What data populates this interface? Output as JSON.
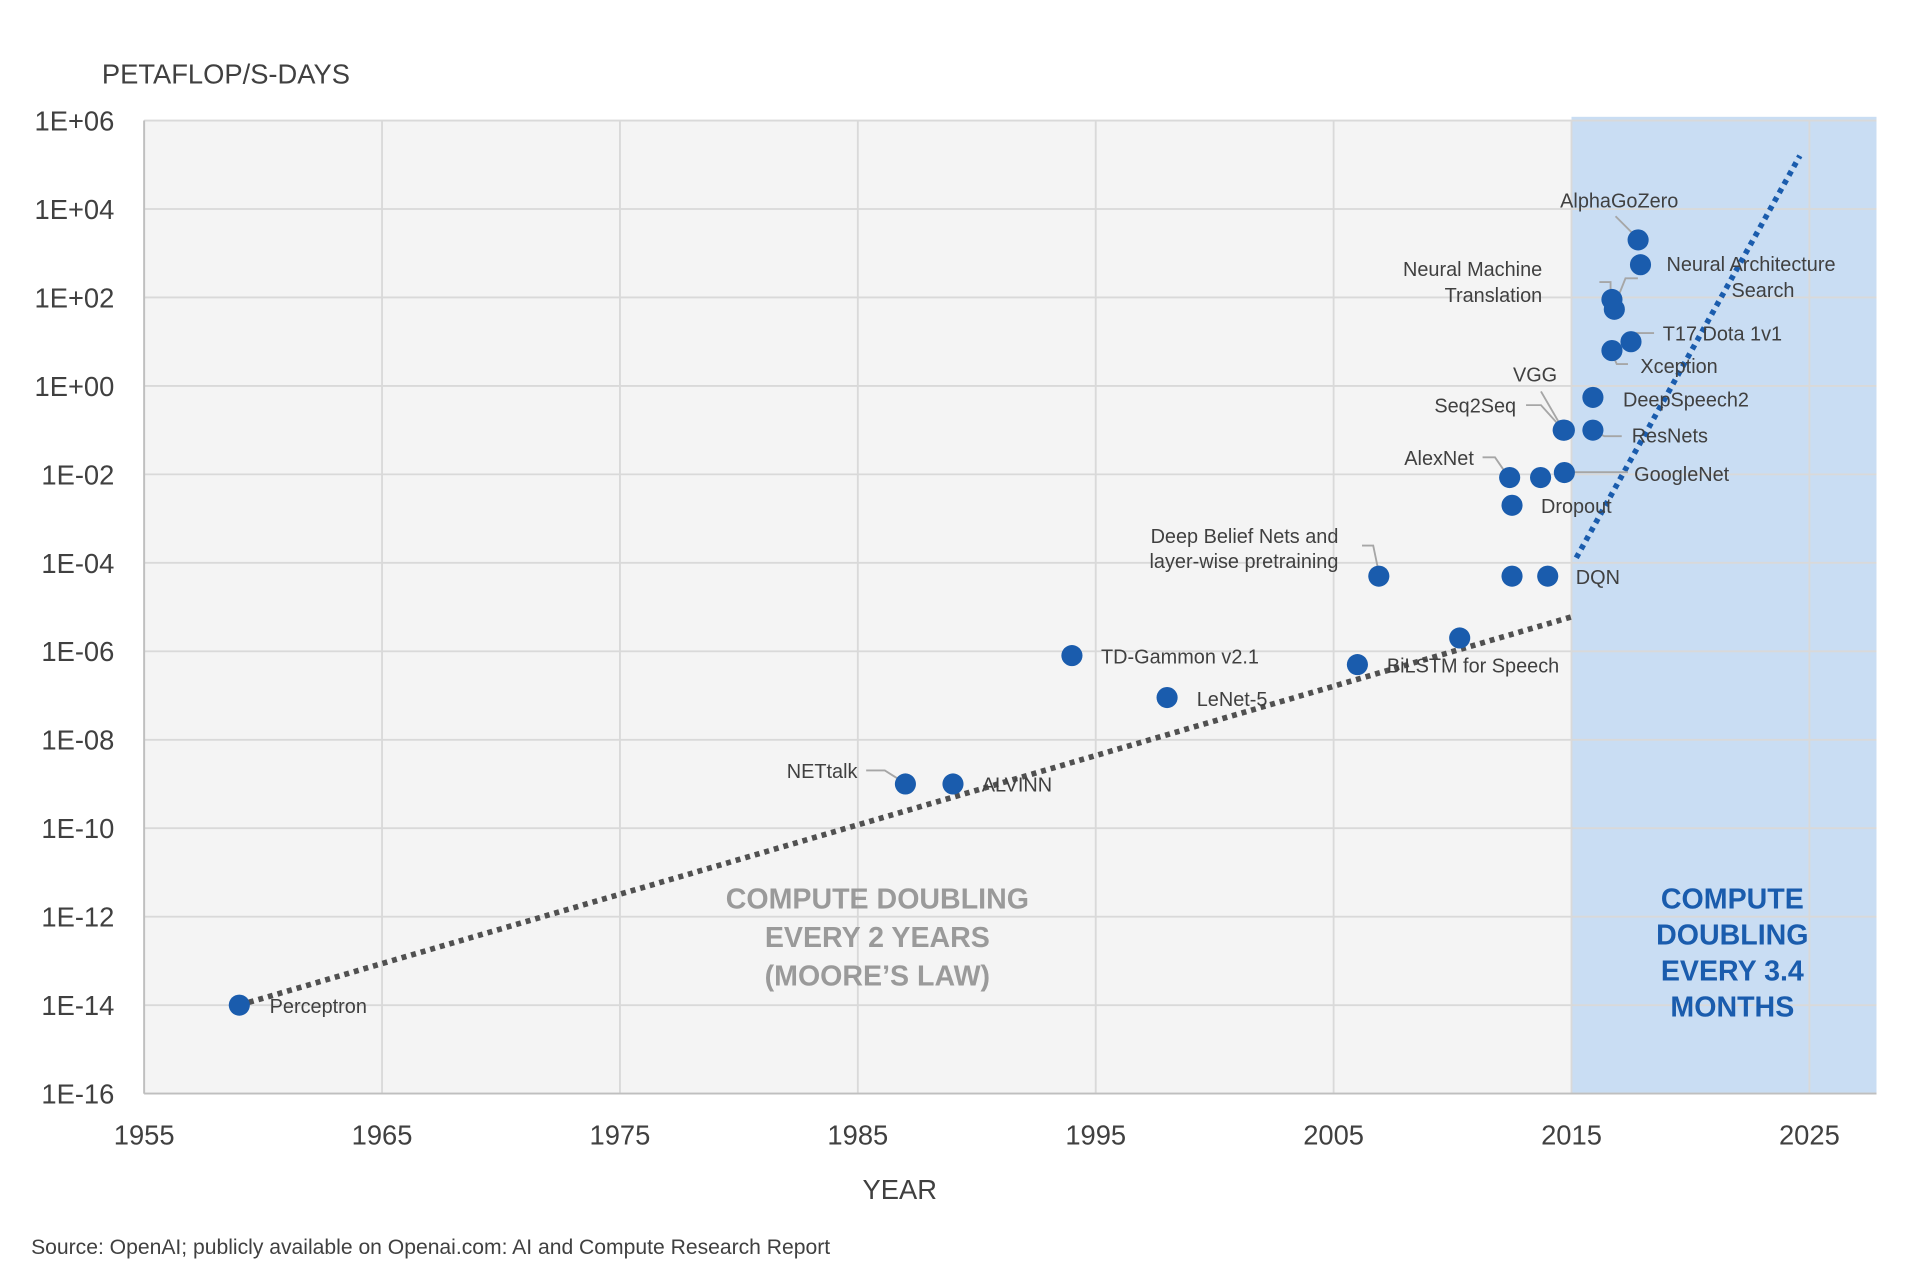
{
  "chart_data": {
    "type": "scatter",
    "ylabel": "PETAFLOP/S-DAYS",
    "xlabel": "YEAR",
    "source": "Source: OpenAI; publicly available on Openai.com: AI and Compute Research Report",
    "xlim": [
      1955,
      2025
    ],
    "x_ticks": [
      "1955",
      "1965",
      "1975",
      "1985",
      "1995",
      "2005",
      "2015",
      "2025"
    ],
    "y_scale": "log",
    "ylim": [
      1e-16,
      1000000.0
    ],
    "y_ticks": [
      "1E+06",
      "1E+04",
      "1E+02",
      "1E+00",
      "1E-02",
      "1E-04",
      "1E-06",
      "1E-08",
      "1E-10",
      "1E-12",
      "1E-14",
      "1E-16"
    ],
    "grid": true,
    "colors": {
      "points": "#1a5cad",
      "plot_bg": "#f4f4f4",
      "modern_era_bg": "#c9ddf3",
      "trend_early": "#505050",
      "trend_modern": "#1a5cad"
    },
    "modern_era_start": 2015,
    "points": [
      {
        "label": "Perceptron",
        "x": 1959.0,
        "y": 1e-14
      },
      {
        "label": "NETtalk",
        "x": 1987.0,
        "y": 1e-09
      },
      {
        "label": "ALVINN",
        "x": 1989.0,
        "y": 1e-09
      },
      {
        "label": "TD-Gammon v2.1",
        "x": 1994.0,
        "y": 8e-07
      },
      {
        "label": "LeNet-5",
        "x": 1998.0,
        "y": 9e-08
      },
      {
        "label": "BiLSTM for Speech",
        "x": 2006.0,
        "y": 5e-07
      },
      {
        "label": "",
        "x": 2010.3,
        "y": 2e-06
      },
      {
        "label": "Deep Belief Nets and layer-wise pretraining",
        "x": 2006.9,
        "y": 5e-05
      },
      {
        "label": "",
        "x": 2012.5,
        "y": 5e-05
      },
      {
        "label": "DQN",
        "x": 2014.0,
        "y": 5e-05
      },
      {
        "label": "Dropout",
        "x": 2012.5,
        "y": 0.002
      },
      {
        "label": "AlexNet",
        "x": 2012.4,
        "y": 0.0085
      },
      {
        "label": "",
        "x": 2013.7,
        "y": 0.0085
      },
      {
        "label": "GoogleNet",
        "x": 2014.7,
        "y": 0.011
      },
      {
        "label": "VGG",
        "x": 2014.7,
        "y": 0.1
      },
      {
        "label": "Seq2Seq",
        "x": 2014.65,
        "y": 0.1
      },
      {
        "label": "ResNets",
        "x": 2015.9,
        "y": 0.1
      },
      {
        "label": "DeepSpeech2",
        "x": 2015.9,
        "y": 0.55
      },
      {
        "label": "Xception",
        "x": 2016.7,
        "y": 6.3
      },
      {
        "label": "T17 Dota 1v1",
        "x": 2017.5,
        "y": 10
      },
      {
        "label": "Neural Machine Translation",
        "x": 2016.7,
        "y": 90
      },
      {
        "label": "Neural Architecture Search",
        "x": 2016.8,
        "y": 54
      },
      {
        "label": "",
        "x": 2017.9,
        "y": 550
      },
      {
        "label": "AlphaGoZero",
        "x": 2017.8,
        "y": 2000
      }
    ],
    "trend_lines": [
      {
        "from": [
          1959,
          1e-14
        ],
        "to": [
          2015,
          6e-06
        ],
        "style": "dotted"
      },
      {
        "from": [
          2015.2,
          0.00013
        ],
        "to": [
          2024.6,
          160000.0
        ],
        "style": "dotted"
      }
    ],
    "annotations": {
      "early": [
        "COMPUTE DOUBLING",
        "EVERY 2 YEARS",
        "(MOORE’S LAW)"
      ],
      "modern": [
        "COMPUTE",
        "DOUBLING",
        "EVERY 3.4",
        "MONTHS"
      ]
    }
  }
}
